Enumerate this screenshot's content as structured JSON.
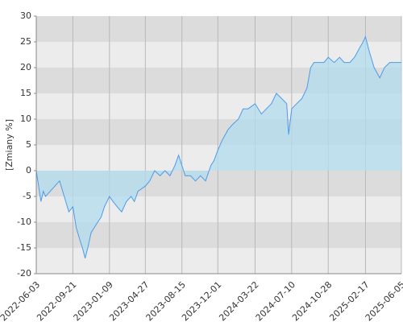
{
  "chart_data": {
    "type": "area",
    "y_label": "[Zmiany %]",
    "x": [
      "2022-06-03",
      "2022-06-10",
      "2022-06-17",
      "2022-06-24",
      "2022-07-01",
      "2022-07-15",
      "2022-07-29",
      "2022-08-12",
      "2022-08-26",
      "2022-09-09",
      "2022-09-21",
      "2022-10-01",
      "2022-10-10",
      "2022-10-20",
      "2022-10-28",
      "2022-11-05",
      "2022-11-15",
      "2022-11-25",
      "2022-12-05",
      "2022-12-15",
      "2022-12-25",
      "2023-01-09",
      "2023-01-20",
      "2023-02-01",
      "2023-02-15",
      "2023-03-01",
      "2023-03-15",
      "2023-03-25",
      "2023-04-05",
      "2023-04-27",
      "2023-05-10",
      "2023-05-25",
      "2023-06-10",
      "2023-06-25",
      "2023-07-10",
      "2023-07-25",
      "2023-08-05",
      "2023-08-15",
      "2023-08-25",
      "2023-09-10",
      "2023-09-25",
      "2023-10-10",
      "2023-10-25",
      "2023-11-10",
      "2023-11-20",
      "2023-12-01",
      "2023-12-15",
      "2024-01-01",
      "2024-01-15",
      "2024-02-01",
      "2024-02-15",
      "2024-03-01",
      "2024-03-22",
      "2024-04-10",
      "2024-04-25",
      "2024-05-10",
      "2024-05-25",
      "2024-06-10",
      "2024-06-25",
      "2024-07-01",
      "2024-07-10",
      "2024-07-25",
      "2024-08-10",
      "2024-08-25",
      "2024-09-05",
      "2024-09-15",
      "2024-10-01",
      "2024-10-15",
      "2024-10-28",
      "2024-11-15",
      "2024-12-01",
      "2024-12-15",
      "2025-01-01",
      "2025-01-15",
      "2025-02-01",
      "2025-02-10",
      "2025-02-17",
      "2025-03-01",
      "2025-03-15",
      "2025-04-01",
      "2025-04-15",
      "2025-05-01",
      "2025-05-20",
      "2025-06-05"
    ],
    "values": [
      0,
      -3,
      -6,
      -4,
      -5,
      -4,
      -3,
      -2,
      -5,
      -8,
      -7,
      -11,
      -13,
      -15,
      -17,
      -15,
      -12,
      -11,
      -10,
      -9,
      -7,
      -5,
      -6,
      -7,
      -8,
      -6,
      -5,
      -6,
      -4,
      -3,
      -2,
      0,
      -1,
      0,
      -1,
      1,
      3,
      1,
      -1,
      -1,
      -2,
      -1,
      -2,
      1,
      2,
      4,
      6,
      8,
      9,
      10,
      12,
      12,
      13,
      11,
      12,
      13,
      15,
      14,
      13,
      7,
      12,
      13,
      14,
      16,
      20,
      21,
      21,
      21,
      22,
      21,
      22,
      21,
      21,
      22,
      24,
      25,
      26,
      23,
      20,
      18,
      20,
      21,
      21,
      21
    ],
    "line_color": "#4c9be8",
    "fill_color": "#b3dcef",
    "band_colors": [
      "#dcdcdc",
      "#ececec"
    ],
    "xlim": [
      "2022-06-03",
      "2025-06-05"
    ],
    "xticks": [
      "2022-06-03",
      "2022-09-21",
      "2023-01-09",
      "2023-04-27",
      "2023-08-15",
      "2023-12-01",
      "2024-03-22",
      "2024-07-10",
      "2024-10-28",
      "2025-02-17",
      "2025-06-05"
    ],
    "ylim": [
      -20,
      30
    ],
    "yticks": [
      -20,
      -15,
      -10,
      -5,
      0,
      5,
      10,
      15,
      20,
      25,
      30
    ],
    "grid": true
  }
}
